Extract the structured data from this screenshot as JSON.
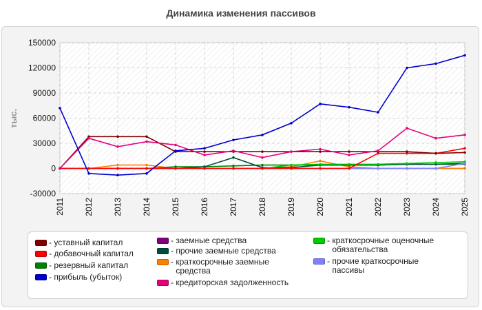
{
  "chart_data": {
    "type": "line",
    "title": "Динамика изменения пассивов",
    "ylabel": "тыс.",
    "xlabel": "",
    "ylim": [
      -30000,
      150000
    ],
    "yticks": [
      -30000,
      0,
      30000,
      60000,
      90000,
      120000,
      150000
    ],
    "x": [
      "2011",
      "2012",
      "2013",
      "2014",
      "2015",
      "2016",
      "2017",
      "2018",
      "2019",
      "2020",
      "2021",
      "2022",
      "2023",
      "2024",
      "2025"
    ],
    "grid": true,
    "legend_position": "bottom",
    "series": [
      {
        "name": "уставный капитал",
        "color": "#800000",
        "values": [
          0,
          38000,
          38000,
          38000,
          20000,
          20000,
          20000,
          20000,
          20000,
          20000,
          20000,
          20000,
          20000,
          18000,
          19000
        ]
      },
      {
        "name": "добавочный капитал",
        "color": "#ff0000",
        "values": [
          0,
          0,
          0,
          0,
          0,
          0,
          0,
          0,
          0,
          0,
          0,
          18000,
          18000,
          18000,
          24000
        ]
      },
      {
        "name": "резервный капитал",
        "color": "#008000",
        "values": [
          0,
          0,
          0,
          0,
          2000,
          2000,
          3000,
          4000,
          4000,
          4000,
          4000,
          4000,
          5000,
          5000,
          5000
        ]
      },
      {
        "name": "прибыль (убыток)",
        "color": "#0000cc",
        "values": [
          72000,
          -6000,
          -8000,
          -6000,
          21000,
          24000,
          34000,
          40000,
          54000,
          77000,
          73000,
          67000,
          120000,
          125000,
          135000
        ]
      },
      {
        "name": "заемные средства",
        "color": "#800080",
        "values": [
          0,
          0,
          0,
          0,
          0,
          0,
          0,
          0,
          0,
          0,
          0,
          0,
          0,
          0,
          0
        ]
      },
      {
        "name": "прочие заемные средства",
        "color": "#004d40",
        "values": [
          0,
          0,
          0,
          0,
          0,
          2000,
          13000,
          1000,
          1000,
          4000,
          4000,
          4000,
          5000,
          5000,
          6000
        ]
      },
      {
        "name": "краткосрочные заемные средства",
        "color": "#ff8000",
        "values": [
          0,
          0,
          4000,
          4000,
          0,
          0,
          0,
          0,
          2000,
          9000,
          2000,
          0,
          0,
          0,
          0
        ]
      },
      {
        "name": "кредиторская задолженность",
        "color": "#e6007e",
        "values": [
          0,
          36000,
          26000,
          32000,
          28000,
          16000,
          21000,
          13000,
          20000,
          23000,
          16000,
          21000,
          48000,
          36000,
          40000
        ]
      },
      {
        "name": "краткосрочные оценочные обязательства",
        "color": "#00cc00",
        "values": [
          0,
          0,
          0,
          0,
          0,
          0,
          0,
          0,
          4000,
          5000,
          5000,
          5000,
          6000,
          7000,
          8000
        ]
      },
      {
        "name": "прочие краткосрочные пассивы",
        "color": "#8080ff",
        "values": [
          0,
          0,
          0,
          0,
          0,
          0,
          0,
          0,
          0,
          0,
          0,
          0,
          0,
          0,
          6000
        ]
      }
    ]
  }
}
